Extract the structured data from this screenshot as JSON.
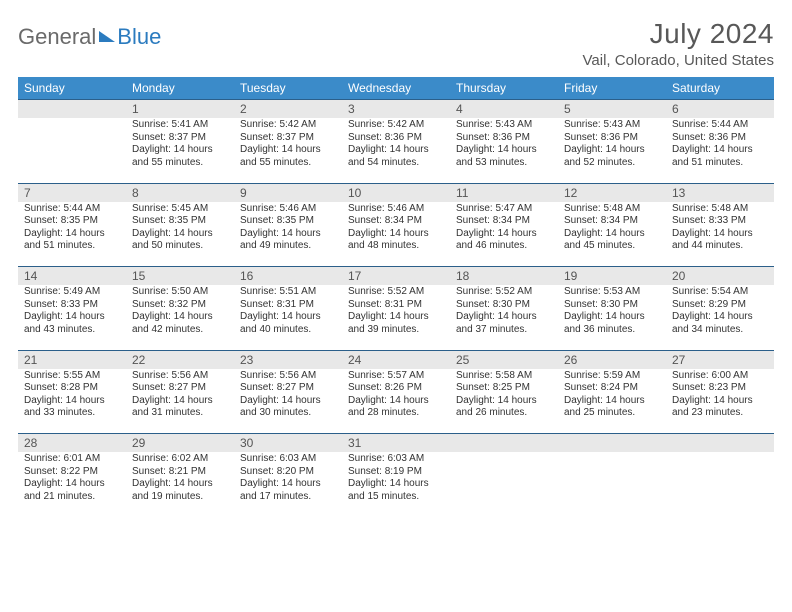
{
  "brand": {
    "part1": "General",
    "part2": "Blue"
  },
  "title": "July 2024",
  "location": "Vail, Colorado, United States",
  "colors": {
    "header_bg": "#3b8bc9",
    "header_text": "#ffffff",
    "daynum_bg": "#e8e8e8",
    "row_border": "#2b5f8a",
    "title_color": "#585858",
    "logo_gray": "#6a6a6a",
    "logo_blue": "#2b7bbf",
    "body_text": "#333333"
  },
  "weekday_labels": [
    "Sunday",
    "Monday",
    "Tuesday",
    "Wednesday",
    "Thursday",
    "Friday",
    "Saturday"
  ],
  "weeks": [
    [
      {
        "num": "",
        "sunrise": "",
        "sunset": "",
        "daylight": ""
      },
      {
        "num": "1",
        "sunrise": "Sunrise: 5:41 AM",
        "sunset": "Sunset: 8:37 PM",
        "daylight": "Daylight: 14 hours and 55 minutes."
      },
      {
        "num": "2",
        "sunrise": "Sunrise: 5:42 AM",
        "sunset": "Sunset: 8:37 PM",
        "daylight": "Daylight: 14 hours and 55 minutes."
      },
      {
        "num": "3",
        "sunrise": "Sunrise: 5:42 AM",
        "sunset": "Sunset: 8:36 PM",
        "daylight": "Daylight: 14 hours and 54 minutes."
      },
      {
        "num": "4",
        "sunrise": "Sunrise: 5:43 AM",
        "sunset": "Sunset: 8:36 PM",
        "daylight": "Daylight: 14 hours and 53 minutes."
      },
      {
        "num": "5",
        "sunrise": "Sunrise: 5:43 AM",
        "sunset": "Sunset: 8:36 PM",
        "daylight": "Daylight: 14 hours and 52 minutes."
      },
      {
        "num": "6",
        "sunrise": "Sunrise: 5:44 AM",
        "sunset": "Sunset: 8:36 PM",
        "daylight": "Daylight: 14 hours and 51 minutes."
      }
    ],
    [
      {
        "num": "7",
        "sunrise": "Sunrise: 5:44 AM",
        "sunset": "Sunset: 8:35 PM",
        "daylight": "Daylight: 14 hours and 51 minutes."
      },
      {
        "num": "8",
        "sunrise": "Sunrise: 5:45 AM",
        "sunset": "Sunset: 8:35 PM",
        "daylight": "Daylight: 14 hours and 50 minutes."
      },
      {
        "num": "9",
        "sunrise": "Sunrise: 5:46 AM",
        "sunset": "Sunset: 8:35 PM",
        "daylight": "Daylight: 14 hours and 49 minutes."
      },
      {
        "num": "10",
        "sunrise": "Sunrise: 5:46 AM",
        "sunset": "Sunset: 8:34 PM",
        "daylight": "Daylight: 14 hours and 48 minutes."
      },
      {
        "num": "11",
        "sunrise": "Sunrise: 5:47 AM",
        "sunset": "Sunset: 8:34 PM",
        "daylight": "Daylight: 14 hours and 46 minutes."
      },
      {
        "num": "12",
        "sunrise": "Sunrise: 5:48 AM",
        "sunset": "Sunset: 8:34 PM",
        "daylight": "Daylight: 14 hours and 45 minutes."
      },
      {
        "num": "13",
        "sunrise": "Sunrise: 5:48 AM",
        "sunset": "Sunset: 8:33 PM",
        "daylight": "Daylight: 14 hours and 44 minutes."
      }
    ],
    [
      {
        "num": "14",
        "sunrise": "Sunrise: 5:49 AM",
        "sunset": "Sunset: 8:33 PM",
        "daylight": "Daylight: 14 hours and 43 minutes."
      },
      {
        "num": "15",
        "sunrise": "Sunrise: 5:50 AM",
        "sunset": "Sunset: 8:32 PM",
        "daylight": "Daylight: 14 hours and 42 minutes."
      },
      {
        "num": "16",
        "sunrise": "Sunrise: 5:51 AM",
        "sunset": "Sunset: 8:31 PM",
        "daylight": "Daylight: 14 hours and 40 minutes."
      },
      {
        "num": "17",
        "sunrise": "Sunrise: 5:52 AM",
        "sunset": "Sunset: 8:31 PM",
        "daylight": "Daylight: 14 hours and 39 minutes."
      },
      {
        "num": "18",
        "sunrise": "Sunrise: 5:52 AM",
        "sunset": "Sunset: 8:30 PM",
        "daylight": "Daylight: 14 hours and 37 minutes."
      },
      {
        "num": "19",
        "sunrise": "Sunrise: 5:53 AM",
        "sunset": "Sunset: 8:30 PM",
        "daylight": "Daylight: 14 hours and 36 minutes."
      },
      {
        "num": "20",
        "sunrise": "Sunrise: 5:54 AM",
        "sunset": "Sunset: 8:29 PM",
        "daylight": "Daylight: 14 hours and 34 minutes."
      }
    ],
    [
      {
        "num": "21",
        "sunrise": "Sunrise: 5:55 AM",
        "sunset": "Sunset: 8:28 PM",
        "daylight": "Daylight: 14 hours and 33 minutes."
      },
      {
        "num": "22",
        "sunrise": "Sunrise: 5:56 AM",
        "sunset": "Sunset: 8:27 PM",
        "daylight": "Daylight: 14 hours and 31 minutes."
      },
      {
        "num": "23",
        "sunrise": "Sunrise: 5:56 AM",
        "sunset": "Sunset: 8:27 PM",
        "daylight": "Daylight: 14 hours and 30 minutes."
      },
      {
        "num": "24",
        "sunrise": "Sunrise: 5:57 AM",
        "sunset": "Sunset: 8:26 PM",
        "daylight": "Daylight: 14 hours and 28 minutes."
      },
      {
        "num": "25",
        "sunrise": "Sunrise: 5:58 AM",
        "sunset": "Sunset: 8:25 PM",
        "daylight": "Daylight: 14 hours and 26 minutes."
      },
      {
        "num": "26",
        "sunrise": "Sunrise: 5:59 AM",
        "sunset": "Sunset: 8:24 PM",
        "daylight": "Daylight: 14 hours and 25 minutes."
      },
      {
        "num": "27",
        "sunrise": "Sunrise: 6:00 AM",
        "sunset": "Sunset: 8:23 PM",
        "daylight": "Daylight: 14 hours and 23 minutes."
      }
    ],
    [
      {
        "num": "28",
        "sunrise": "Sunrise: 6:01 AM",
        "sunset": "Sunset: 8:22 PM",
        "daylight": "Daylight: 14 hours and 21 minutes."
      },
      {
        "num": "29",
        "sunrise": "Sunrise: 6:02 AM",
        "sunset": "Sunset: 8:21 PM",
        "daylight": "Daylight: 14 hours and 19 minutes."
      },
      {
        "num": "30",
        "sunrise": "Sunrise: 6:03 AM",
        "sunset": "Sunset: 8:20 PM",
        "daylight": "Daylight: 14 hours and 17 minutes."
      },
      {
        "num": "31",
        "sunrise": "Sunrise: 6:03 AM",
        "sunset": "Sunset: 8:19 PM",
        "daylight": "Daylight: 14 hours and 15 minutes."
      },
      {
        "num": "",
        "sunrise": "",
        "sunset": "",
        "daylight": ""
      },
      {
        "num": "",
        "sunrise": "",
        "sunset": "",
        "daylight": ""
      },
      {
        "num": "",
        "sunrise": "",
        "sunset": "",
        "daylight": ""
      }
    ]
  ]
}
